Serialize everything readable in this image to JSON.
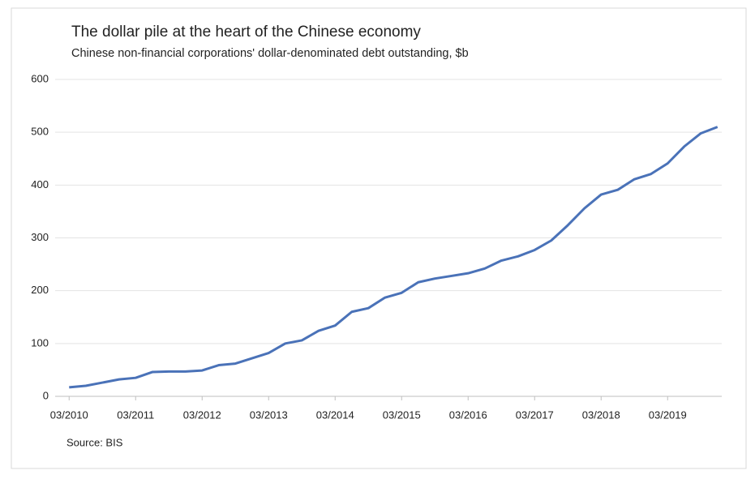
{
  "chart_data": {
    "type": "line",
    "title": "The dollar pile at the heart of the Chinese economy",
    "subtitle": "Chinese non-financial corporations' dollar-denominated debt outstanding, $b",
    "source": "Source: BIS",
    "categories": [
      "03/2010",
      null,
      null,
      null,
      "03/2011",
      null,
      null,
      null,
      "03/2012",
      null,
      null,
      null,
      "03/2013",
      null,
      null,
      null,
      "03/2014",
      null,
      null,
      null,
      "03/2015",
      null,
      null,
      null,
      "03/2016",
      null,
      null,
      null,
      "03/2017",
      null,
      null,
      null,
      "03/2018",
      null,
      null,
      null,
      "03/2019",
      null,
      null,
      null
    ],
    "series": [
      {
        "name": "Dollar-denominated debt outstanding",
        "color": "#4a72b8",
        "values": [
          17,
          20,
          26,
          32,
          35,
          46,
          47,
          47,
          49,
          59,
          62,
          72,
          82,
          100,
          106,
          124,
          134,
          160,
          167,
          187,
          196,
          216,
          223,
          228,
          233,
          242,
          257,
          265,
          277,
          295,
          324,
          356,
          382,
          391,
          411,
          421,
          441,
          473,
          498,
          510
        ]
      }
    ],
    "ylim": [
      0,
      600
    ],
    "yticks": [
      0,
      100,
      200,
      300,
      400,
      500,
      600
    ],
    "grid": true
  }
}
